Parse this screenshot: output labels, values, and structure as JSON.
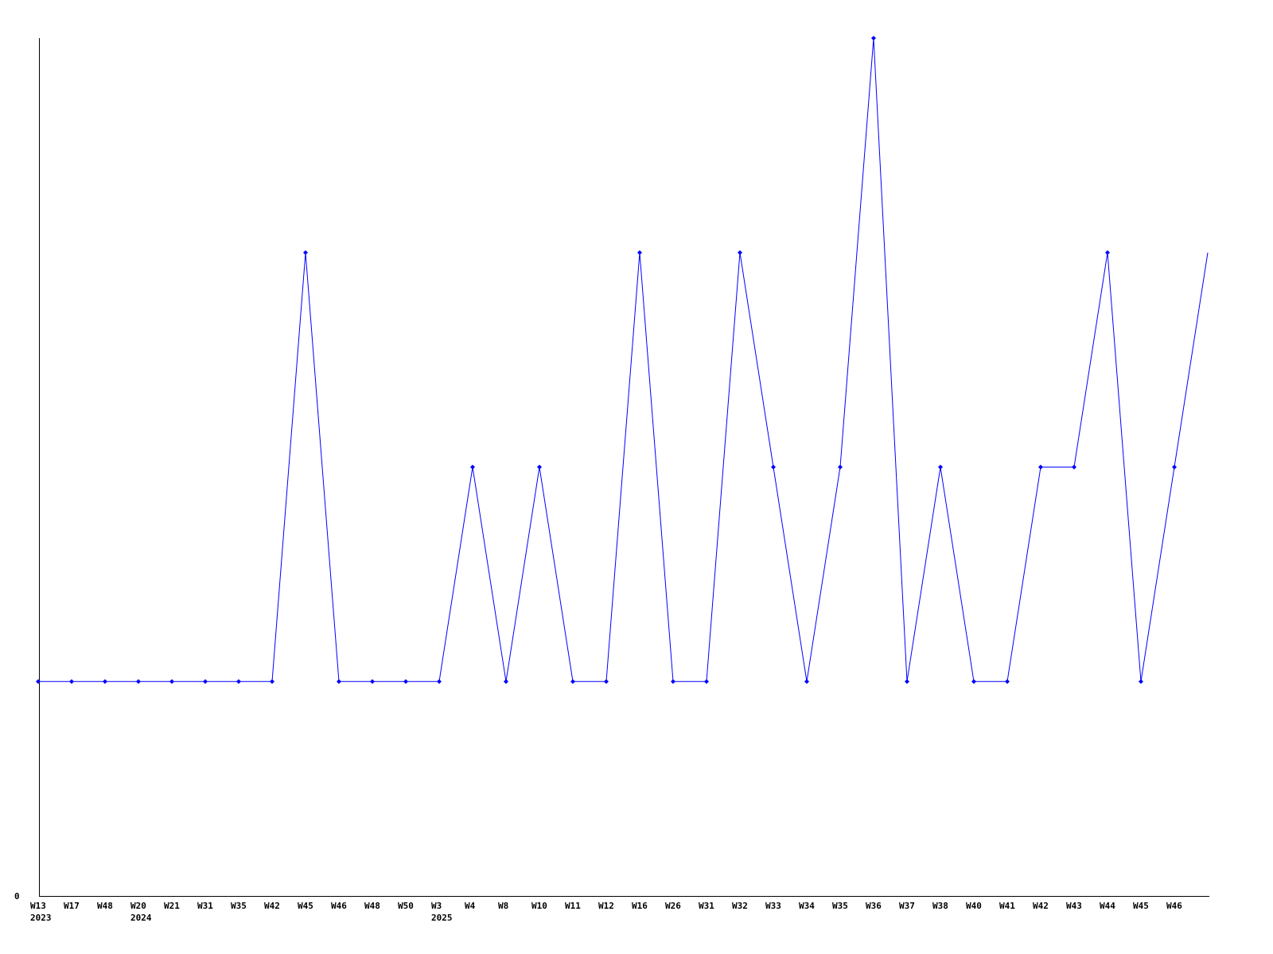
{
  "chart_data": {
    "type": "line",
    "title": "",
    "xlabel": "",
    "ylabel": "",
    "y_tick_labels": [
      "0"
    ],
    "ylim": [
      0,
      4
    ],
    "grid": false,
    "legend": "none",
    "line_color": "#0000ff",
    "categories": [
      {
        "week": "W13",
        "year": "2023"
      },
      {
        "week": "W17",
        "year": ""
      },
      {
        "week": "W48",
        "year": ""
      },
      {
        "week": "W20",
        "year": "2024"
      },
      {
        "week": "W21",
        "year": ""
      },
      {
        "week": "W31",
        "year": ""
      },
      {
        "week": "W35",
        "year": ""
      },
      {
        "week": "W42",
        "year": ""
      },
      {
        "week": "W45",
        "year": ""
      },
      {
        "week": "W46",
        "year": ""
      },
      {
        "week": "W48",
        "year": ""
      },
      {
        "week": "W50",
        "year": ""
      },
      {
        "week": "W3",
        "year": "2025"
      },
      {
        "week": "W4",
        "year": ""
      },
      {
        "week": "W8",
        "year": ""
      },
      {
        "week": "W10",
        "year": ""
      },
      {
        "week": "W11",
        "year": ""
      },
      {
        "week": "W12",
        "year": ""
      },
      {
        "week": "W16",
        "year": ""
      },
      {
        "week": "W26",
        "year": ""
      },
      {
        "week": "W31",
        "year": ""
      },
      {
        "week": "W32",
        "year": ""
      },
      {
        "week": "W33",
        "year": ""
      },
      {
        "week": "W34",
        "year": ""
      },
      {
        "week": "W35",
        "year": ""
      },
      {
        "week": "W36",
        "year": ""
      },
      {
        "week": "W37",
        "year": ""
      },
      {
        "week": "W38",
        "year": ""
      },
      {
        "week": "W40",
        "year": ""
      },
      {
        "week": "W41",
        "year": ""
      },
      {
        "week": "W42",
        "year": ""
      },
      {
        "week": "W43",
        "year": ""
      },
      {
        "week": "W44",
        "year": ""
      },
      {
        "week": "W45",
        "year": ""
      },
      {
        "week": "W46",
        "year": ""
      },
      {
        "week": "",
        "year": ""
      }
    ],
    "values": [
      1,
      1,
      1,
      1,
      1,
      1,
      1,
      1,
      3,
      1,
      1,
      1,
      1,
      2,
      1,
      2,
      1,
      1,
      3,
      1,
      1,
      3,
      2,
      1,
      2,
      4,
      1,
      2,
      1,
      1,
      2,
      2,
      3,
      1,
      2,
      3
    ]
  }
}
